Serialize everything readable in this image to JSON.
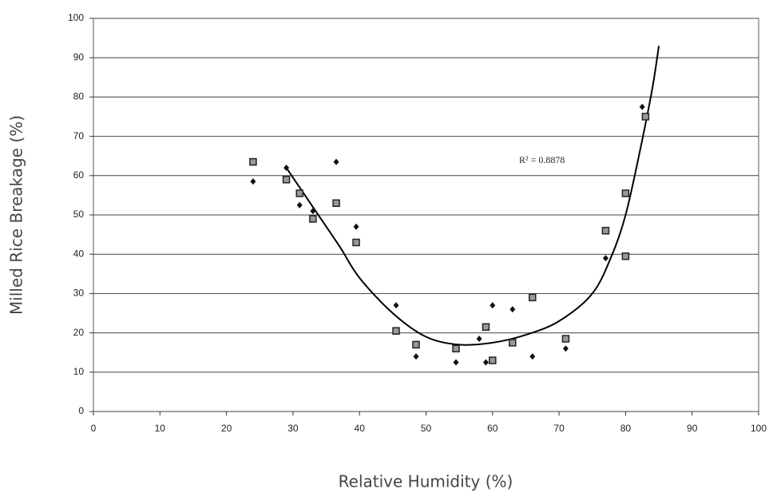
{
  "chart_data": {
    "type": "scatter",
    "x_label": "Relative Humidity (%)",
    "y_label": "Milled Rice Breakage (%)",
    "annotation": "R² = 0.8878",
    "xlim": [
      0,
      100
    ],
    "xticks": [
      0,
      10,
      20,
      30,
      40,
      50,
      60,
      70,
      80,
      90,
      100
    ],
    "ylim": [
      0,
      100
    ],
    "yticks": [
      0,
      10,
      20,
      30,
      40,
      50,
      60,
      70,
      80,
      90,
      100
    ],
    "grid": true,
    "series": [
      {
        "marker": "diamond",
        "color": "#111111",
        "x": [
          24,
          29,
          31,
          33,
          36.5,
          39.5,
          45.5,
          48.5,
          54.5,
          58,
          59,
          60,
          63,
          66,
          71,
          77,
          82.5
        ],
        "values": [
          58.5,
          62,
          52.5,
          51,
          63.5,
          47,
          27,
          14,
          12.5,
          18.5,
          12.5,
          27,
          26,
          14,
          16,
          39,
          77.5
        ]
      },
      {
        "marker": "square",
        "color": "#222222",
        "x": [
          24,
          29,
          31,
          33,
          36.5,
          39.5,
          45.5,
          48.5,
          54.5,
          59,
          60,
          63,
          66,
          71,
          77,
          80,
          80,
          83
        ],
        "values": [
          63.5,
          59,
          55.5,
          49,
          53,
          43,
          20.5,
          17,
          16,
          21.5,
          13,
          17.5,
          29,
          18.5,
          46,
          55.5,
          39.5,
          75
        ]
      }
    ],
    "trendline": {
      "color": "#000000",
      "x": [
        29,
        33,
        37,
        40,
        45,
        50,
        55,
        60,
        65,
        70,
        75,
        78,
        80,
        82,
        84,
        85
      ],
      "values": [
        62,
        52,
        42,
        34,
        25,
        19,
        17,
        17.5,
        19.5,
        23,
        30,
        40,
        50,
        65,
        82,
        93
      ]
    }
  }
}
